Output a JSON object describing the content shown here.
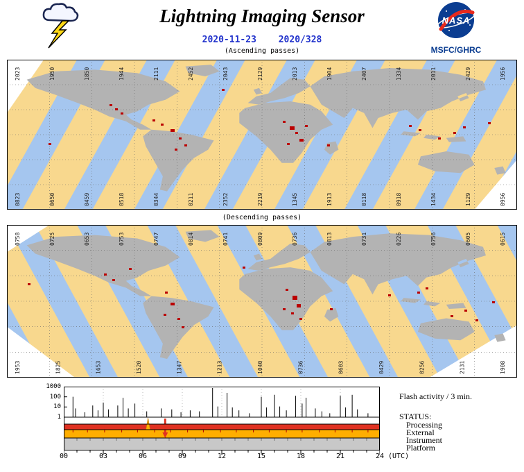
{
  "header": {
    "title": "Lightning Imaging Sensor",
    "date_iso": "2020-11-23",
    "date_doy": "2020/328",
    "agency": "MSFC/GHRC",
    "nasa_wordmark": "NASA"
  },
  "colors": {
    "date_blue": "#2233CC",
    "nasa_blue": "#0B3D91",
    "nasa_red": "#E8291C",
    "map_day": "#F8D88E",
    "map_night": "#A5C6EF",
    "land": "#B3B3B3",
    "flash_red": "#BB0000",
    "status_external": "#E03222",
    "status_instrument": "#FFAE00",
    "status_platform": "#C8C8C8",
    "bolt_yellow": "#FFD915"
  },
  "maps": [
    {
      "id": "ascending",
      "caption": "(Ascending passes)",
      "orbit_numbers_top": [
        "2023",
        "1950",
        "1850",
        "1944",
        "2111",
        "2452",
        "2043",
        "2129",
        "2013",
        "1904",
        "2407",
        "1334",
        "2011",
        "2429",
        "1956"
      ],
      "orbit_numbers_bottom": [
        "0823",
        "0650",
        "0459",
        "0518",
        "0344",
        "0211",
        "2352",
        "2219",
        "1345",
        "1913",
        "0118",
        "0918",
        "1434",
        "1129",
        "0956"
      ],
      "flashes": [
        [
          148,
          64
        ],
        [
          156,
          70
        ],
        [
          164,
          76
        ],
        [
          210,
          86
        ],
        [
          222,
          92
        ],
        [
          236,
          100,
          6,
          4
        ],
        [
          248,
          112
        ],
        [
          256,
          122
        ],
        [
          242,
          128
        ],
        [
          310,
          42
        ],
        [
          398,
          88
        ],
        [
          408,
          96,
          7,
          5
        ],
        [
          416,
          104
        ],
        [
          422,
          114,
          6,
          4
        ],
        [
          404,
          120
        ],
        [
          430,
          94
        ],
        [
          462,
          122
        ],
        [
          580,
          94
        ],
        [
          594,
          100
        ],
        [
          622,
          112
        ],
        [
          644,
          104
        ],
        [
          658,
          96
        ],
        [
          694,
          90
        ],
        [
          60,
          120
        ]
      ]
    },
    {
      "id": "descending",
      "caption": "(Descending passes)",
      "orbit_numbers_top": [
        "0758",
        "0725",
        "0653",
        "0753",
        "0747",
        "0814",
        "0741",
        "0809",
        "0736",
        "0813",
        "0731",
        "0226",
        "0756",
        "0605",
        "0615"
      ],
      "orbit_numbers_bottom": [
        "1953",
        "1825",
        "1653",
        "1520",
        "1347",
        "1213",
        "1040",
        "0736",
        "0603",
        "0429",
        "0256",
        "2131",
        "1908"
      ],
      "flashes": [
        [
          30,
          84
        ],
        [
          140,
          70
        ],
        [
          152,
          78
        ],
        [
          176,
          62
        ],
        [
          228,
          96
        ],
        [
          236,
          112,
          6,
          4
        ],
        [
          226,
          128
        ],
        [
          246,
          134
        ],
        [
          252,
          146
        ],
        [
          340,
          60
        ],
        [
          402,
          92
        ],
        [
          412,
          102,
          7,
          6
        ],
        [
          418,
          114,
          6,
          5
        ],
        [
          410,
          126
        ],
        [
          422,
          134
        ],
        [
          398,
          120
        ],
        [
          466,
          120
        ],
        [
          550,
          100
        ],
        [
          592,
          96
        ],
        [
          604,
          90
        ],
        [
          640,
          130
        ],
        [
          660,
          122
        ],
        [
          676,
          136
        ],
        [
          700,
          110
        ]
      ]
    }
  ],
  "chart": {
    "flash_label": "Flash activity / 3 min.",
    "status_label": "STATUS:",
    "status_rows": [
      {
        "label": "Processing",
        "color": "#FFFFFF"
      },
      {
        "label": "External",
        "color": "#E03222"
      },
      {
        "label": "Instrument",
        "color": "#FFAE00"
      },
      {
        "label": "Platform",
        "color": "#C8C8C8"
      }
    ],
    "y_ticks": [
      "1000",
      "100",
      "10",
      "1"
    ],
    "x_ticks": [
      "00",
      "03",
      "06",
      "09",
      "12",
      "15",
      "18",
      "21",
      "24"
    ],
    "x_unit": "(UTC)",
    "instrument_tick_hours": [
      0.7,
      1.8,
      3.1,
      4.4,
      5.6,
      6.9,
      8.1,
      9.4,
      10.6,
      11.9,
      13.1,
      14.4,
      15.6,
      16.9,
      18.1,
      19.4,
      20.6,
      21.9,
      23.1
    ],
    "events": [
      {
        "type": "spike-up",
        "hour": 6.4
      },
      {
        "type": "arrow-down",
        "hour": 7.7
      }
    ],
    "chart_data": {
      "type": "bar",
      "title": "Flash activity / 3 min.",
      "x_label": "(UTC)",
      "x_range_hours": [
        0,
        24
      ],
      "y_scale": "log",
      "y_ticks": [
        1,
        10,
        100,
        1000
      ],
      "spikes_hour_logvalue": [
        [
          0.7,
          2.1
        ],
        [
          0.9,
          0.9
        ],
        [
          1.6,
          0.5
        ],
        [
          2.2,
          1.2
        ],
        [
          2.6,
          0.7
        ],
        [
          3.0,
          1.5
        ],
        [
          3.4,
          0.8
        ],
        [
          4.1,
          1.2
        ],
        [
          4.5,
          2.0
        ],
        [
          4.9,
          0.9
        ],
        [
          5.4,
          1.4
        ],
        [
          6.3,
          0.6
        ],
        [
          7.4,
          0.9
        ],
        [
          8.2,
          0.8
        ],
        [
          8.9,
          0.5
        ],
        [
          9.6,
          0.7
        ],
        [
          10.3,
          0.6
        ],
        [
          11.3,
          3.0
        ],
        [
          11.7,
          1.1
        ],
        [
          12.4,
          2.5
        ],
        [
          12.8,
          1.0
        ],
        [
          13.3,
          0.7
        ],
        [
          14.1,
          0.4
        ],
        [
          15.0,
          2.1
        ],
        [
          15.4,
          1.0
        ],
        [
          16.0,
          2.3
        ],
        [
          16.4,
          1.1
        ],
        [
          16.9,
          0.7
        ],
        [
          17.6,
          2.2
        ],
        [
          18.1,
          1.4
        ],
        [
          18.4,
          2.0
        ],
        [
          19.1,
          0.9
        ],
        [
          19.6,
          0.6
        ],
        [
          20.2,
          0.4
        ],
        [
          21.0,
          2.2
        ],
        [
          21.4,
          1.0
        ],
        [
          21.9,
          2.3
        ],
        [
          22.3,
          0.8
        ],
        [
          23.1,
          0.4
        ]
      ]
    }
  }
}
